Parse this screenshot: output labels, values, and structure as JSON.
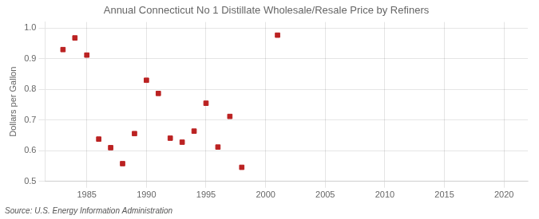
{
  "chart_data": {
    "type": "scatter",
    "title": "Annual Connecticut No 1 Distillate Wholesale/Resale Price by Refiners",
    "ylabel": "Dollars per Gallon",
    "annotations": [
      "Source: U.S. Energy Information Administration"
    ],
    "x": [
      1983,
      1984,
      1985,
      1986,
      1987,
      1988,
      1989,
      1990,
      1991,
      1992,
      1993,
      1994,
      1995,
      1996,
      1997,
      1998,
      2001
    ],
    "values": [
      0.93,
      0.968,
      0.912,
      0.638,
      0.61,
      0.558,
      0.656,
      0.83,
      0.787,
      0.641,
      0.628,
      0.664,
      0.755,
      0.612,
      0.712,
      0.546,
      0.977
    ],
    "color": "#bb2222",
    "marker": "square",
    "xlim": [
      1981.5,
      2022
    ],
    "ylim": [
      0.5,
      1.02
    ],
    "xticks": [
      1985,
      1990,
      1995,
      2000,
      2005,
      2010,
      2015,
      2020
    ],
    "yticks": [
      0.5,
      0.6,
      0.7,
      0.8,
      0.9,
      {
        "value": 1.0,
        "label": "1.0"
      }
    ],
    "grid": true
  }
}
